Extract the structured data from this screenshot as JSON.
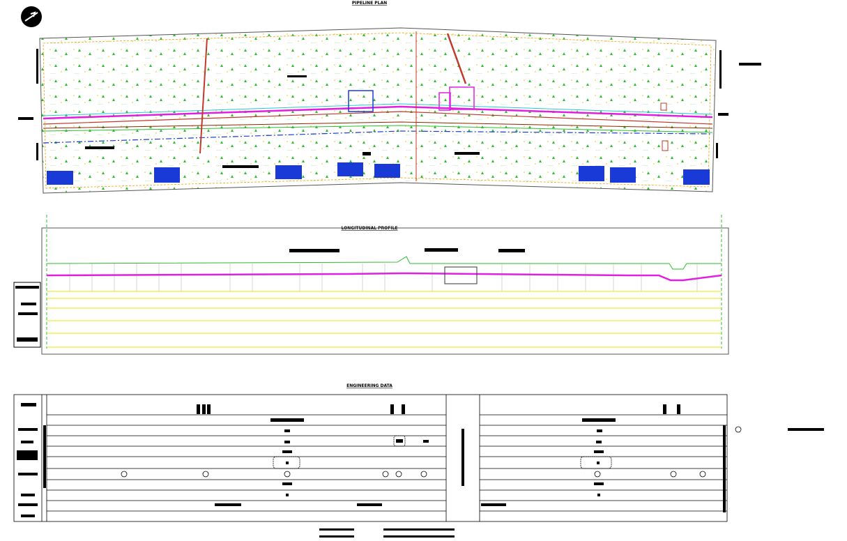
{
  "plan": {
    "title": "PIPELINE PLAN"
  },
  "profile": {
    "title": "LONGITUDINAL PROFILE"
  },
  "engineering": {
    "title": "ENGINEERING DATA"
  }
}
